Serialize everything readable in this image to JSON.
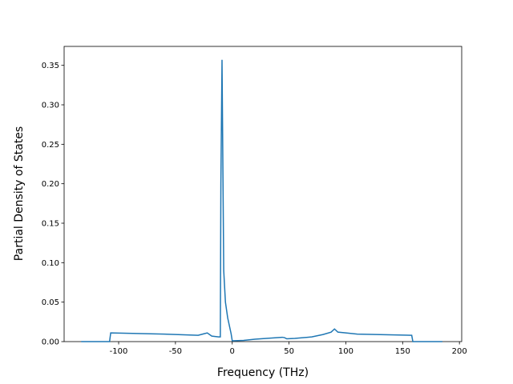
{
  "chart_data": {
    "type": "line",
    "xlabel": "Frequency (THz)",
    "ylabel": "Partial Density of States",
    "xlim": [
      -148,
      202
    ],
    "ylim": [
      0,
      0.374
    ],
    "xticks": [
      -100,
      -50,
      0,
      50,
      100,
      150,
      200
    ],
    "yticks": [
      {
        "value": 0,
        "label": "0.00"
      },
      {
        "value": 0.05,
        "label": "0.05"
      },
      {
        "value": 0.1,
        "label": "0.10"
      },
      {
        "value": 0.15,
        "label": "0.15"
      },
      {
        "value": 0.2,
        "label": "0.20"
      },
      {
        "value": 0.25,
        "label": "0.25"
      },
      {
        "value": 0.3,
        "label": "0.30"
      },
      {
        "value": 0.35,
        "label": "0.35"
      }
    ],
    "series": [
      {
        "color": "#1f77b4",
        "x": [
          -133,
          -108,
          -107,
          -60,
          -30,
          -22,
          -18,
          -12,
          -10.5,
          -10,
          -9,
          -7.5,
          -6,
          -4,
          -1,
          0,
          10,
          20,
          30,
          44,
          46,
          48,
          55,
          70,
          80,
          87,
          90,
          93,
          100,
          110,
          158,
          159,
          185
        ],
        "values": [
          0,
          0,
          0.011,
          0.0095,
          0.008,
          0.011,
          0.007,
          0.006,
          0.006,
          0.2,
          0.357,
          0.09,
          0.05,
          0.03,
          0.01,
          0.001,
          0.0015,
          0.003,
          0.004,
          0.0055,
          0.005,
          0.0035,
          0.004,
          0.006,
          0.009,
          0.012,
          0.016,
          0.012,
          0.011,
          0.0095,
          0.008,
          0,
          0
        ]
      }
    ]
  }
}
